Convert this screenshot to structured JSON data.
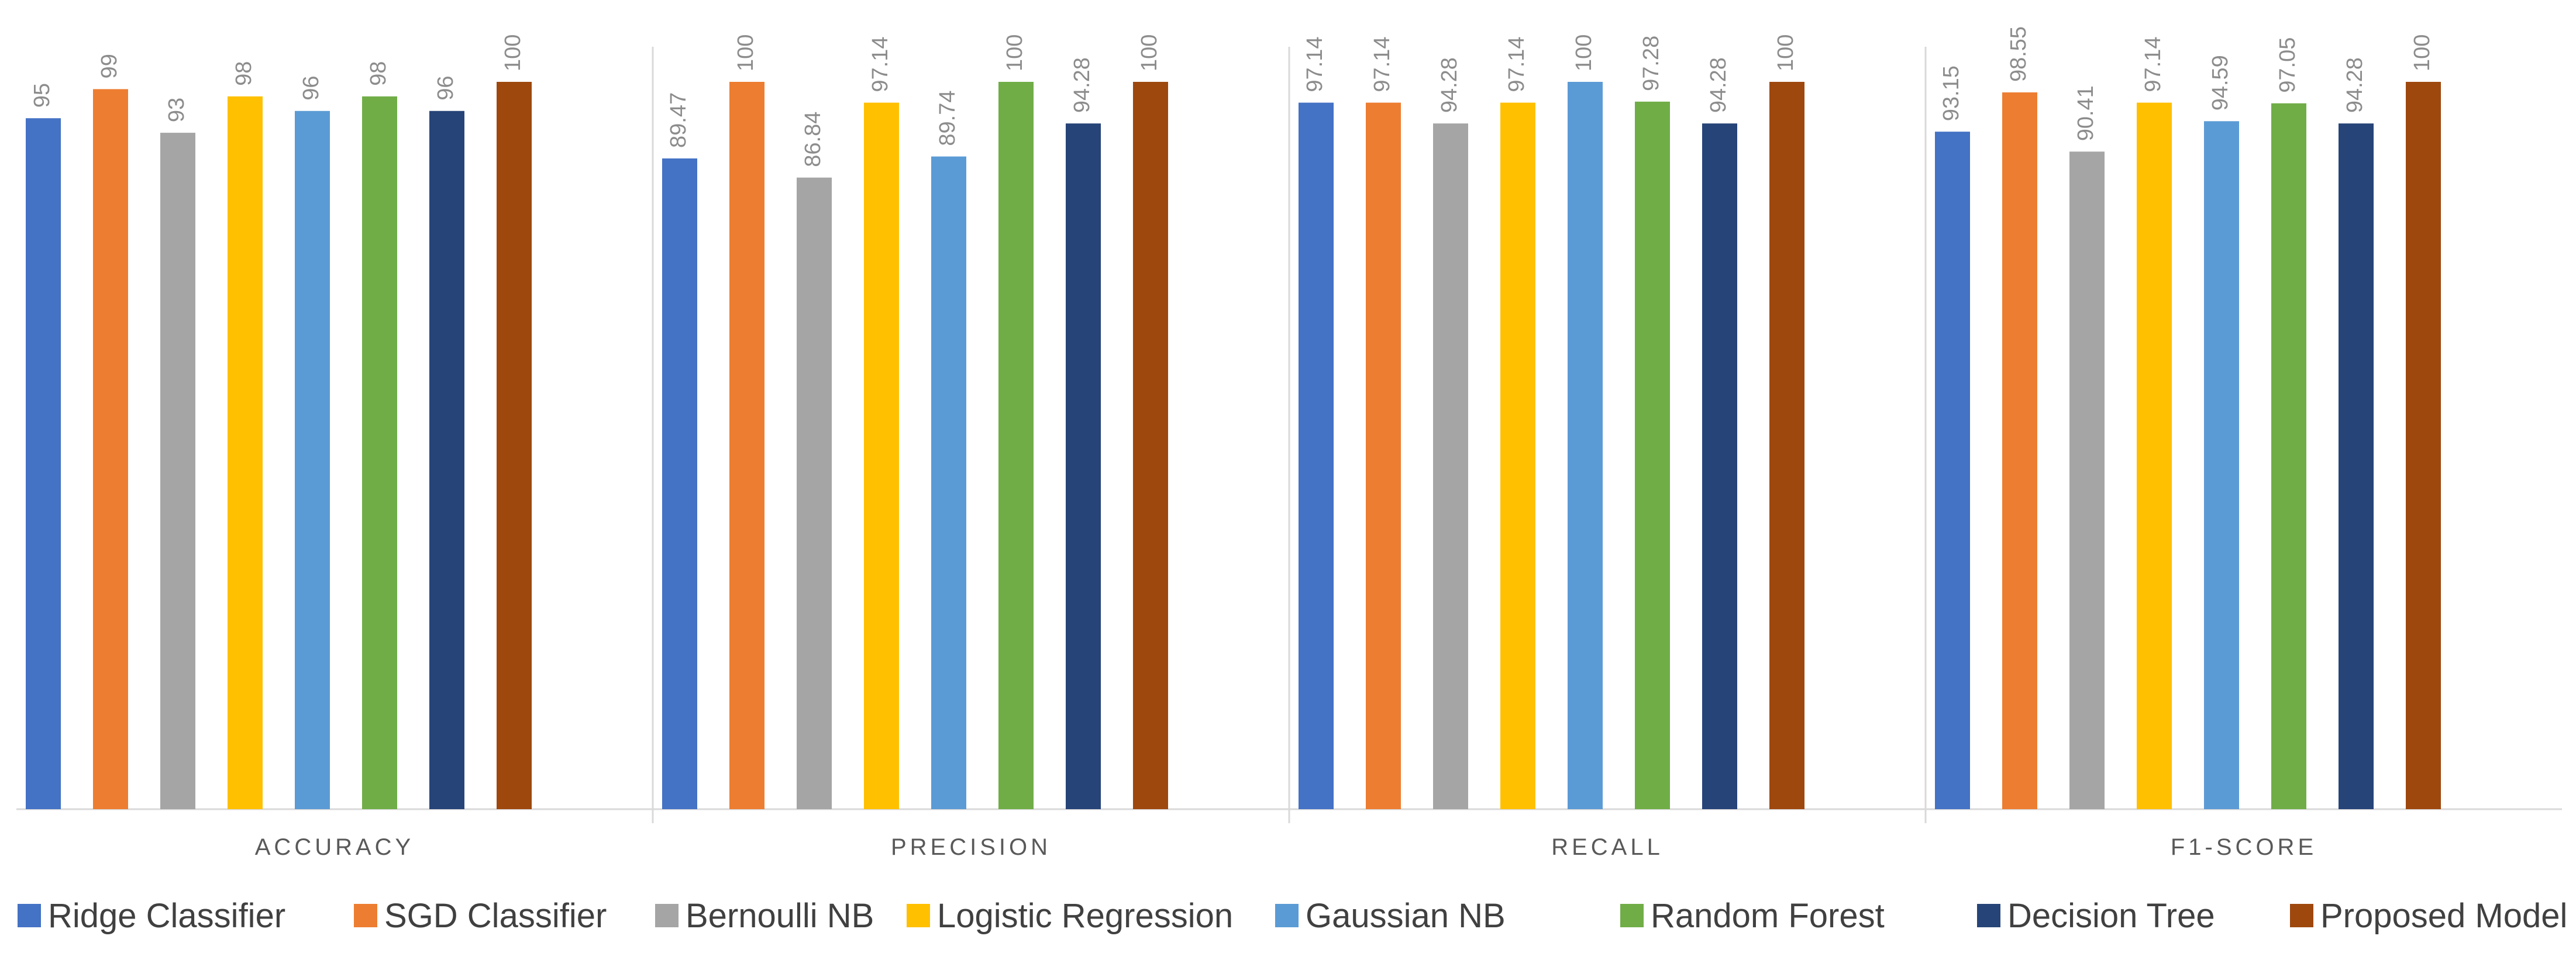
{
  "chart_data": {
    "type": "bar",
    "title": "",
    "xlabel": "",
    "ylabel": "",
    "ylim": [
      0,
      100
    ],
    "grid": false,
    "legend_position": "bottom",
    "categories": [
      "ACCURACY",
      "PRECISION",
      "RECALL",
      "F1-SCORE"
    ],
    "value_labels": [
      [
        "95",
        "99",
        "93",
        "98",
        "96",
        "98",
        "96",
        "100"
      ],
      [
        "89.47",
        "100",
        "86.84",
        "97.14",
        "89.74",
        "100",
        "94.28",
        "100"
      ],
      [
        "97.14",
        "97.14",
        "94.28",
        "97.14",
        "100",
        "97.28",
        "94.28",
        "100"
      ],
      [
        "93.15",
        "98.55",
        "90.41",
        "97.14",
        "94.59",
        "97.05",
        "94.28",
        "100"
      ]
    ],
    "series": [
      {
        "name": "Ridge Classifier",
        "color": "#4472C4",
        "values": [
          95,
          89.47,
          97.14,
          93.15
        ]
      },
      {
        "name": "SGD Classifier",
        "color": "#ED7D31",
        "values": [
          99,
          100,
          97.14,
          98.55
        ]
      },
      {
        "name": "Bernoulli NB",
        "color": "#A5A5A5",
        "values": [
          93,
          86.84,
          94.28,
          90.41
        ]
      },
      {
        "name": "Logistic Regression",
        "color": "#FFC000",
        "values": [
          98,
          97.14,
          97.14,
          97.14
        ]
      },
      {
        "name": "Gaussian NB",
        "color": "#5B9BD5",
        "values": [
          96,
          89.74,
          100,
          94.59
        ]
      },
      {
        "name": "Random Forest",
        "color": "#70AD47",
        "values": [
          98,
          100,
          97.28,
          97.05
        ]
      },
      {
        "name": "Decision Tree",
        "color": "#264478",
        "values": [
          96,
          94.28,
          94.28,
          94.28
        ]
      },
      {
        "name": "Proposed Model",
        "color": "#9E480E",
        "values": [
          100,
          100,
          100,
          100
        ]
      }
    ]
  }
}
